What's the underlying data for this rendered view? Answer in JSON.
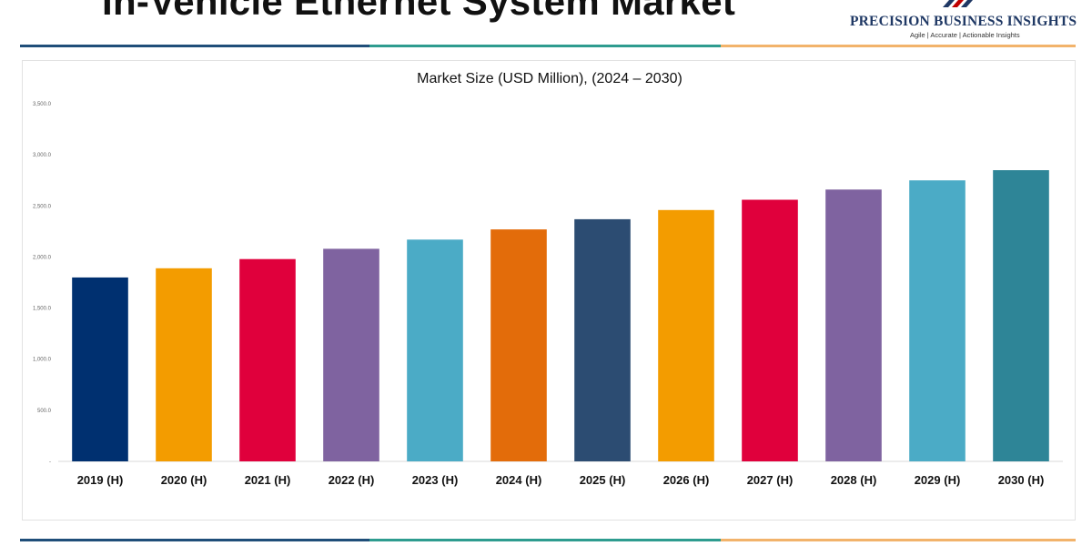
{
  "header": {
    "title": "In-Vehicle Ethernet System Market",
    "brand_name": "PRECISION BUSINESS INSIGHTS",
    "brand_tagline": "Agile | Accurate | Actionable Insights"
  },
  "colors": {
    "stripe_blue": "#1f4e79",
    "stripe_teal": "#2e9c8f",
    "stripe_orange": "#f2b36b",
    "brand_navy": "#1f3864",
    "brand_red": "#c00000"
  },
  "chart_data": {
    "type": "bar",
    "title": "Market Size (USD Million), (2024 – 2030)",
    "xlabel": "",
    "ylabel": "",
    "ylim": [
      0,
      3500
    ],
    "yticks": [
      0,
      500,
      1000,
      1500,
      2000,
      2500,
      3000,
      3500
    ],
    "ytick_labels": [
      "-",
      "500.0",
      "1,000.0",
      "1,500.0",
      "2,000.0",
      "2,500.0",
      "3,000.0",
      "3,500.0"
    ],
    "grid": false,
    "categories": [
      "2019 (H)",
      "2020 (H)",
      "2021 (H)",
      "2022 (H)",
      "2023 (H)",
      "2024 (H)",
      "2025 (H)",
      "2026 (H)",
      "2027 (H)",
      "2028 (H)",
      "2029 (H)",
      "2030 (H)"
    ],
    "values": [
      1800,
      1890,
      1980,
      2080,
      2170,
      2270,
      2370,
      2460,
      2560,
      2660,
      2750,
      2850
    ],
    "bar_colors": [
      "#003070",
      "#f39c00",
      "#e0003c",
      "#7f63a0",
      "#4babc6",
      "#e36c0a",
      "#2c4c72",
      "#f39c00",
      "#e0003c",
      "#7f63a0",
      "#4babc6",
      "#2e8597"
    ]
  }
}
